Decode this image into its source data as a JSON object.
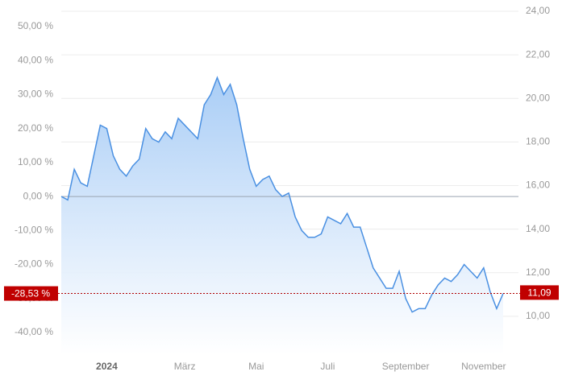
{
  "chart_data": {
    "type": "area",
    "categories": [
      null,
      null,
      null,
      null,
      null,
      null,
      null,
      "2024",
      null,
      null,
      null,
      null,
      null,
      null,
      null,
      null,
      null,
      null,
      null,
      "März",
      null,
      null,
      null,
      null,
      null,
      null,
      null,
      null,
      null,
      null,
      "Mai",
      null,
      null,
      null,
      null,
      null,
      null,
      null,
      null,
      null,
      null,
      "Juli",
      null,
      null,
      null,
      null,
      null,
      null,
      null,
      null,
      null,
      null,
      null,
      "September",
      null,
      null,
      null,
      null,
      null,
      null,
      null,
      null,
      null,
      null,
      null,
      "November",
      null,
      null,
      null
    ],
    "series": [
      {
        "color": "#4a90e2",
        "values": [
          0,
          -1,
          8,
          4,
          3,
          12,
          21,
          20,
          12,
          8,
          6,
          9,
          11,
          20,
          17,
          16,
          19,
          17,
          23,
          21,
          19,
          17,
          27,
          30,
          35,
          30,
          33,
          27,
          17,
          8,
          3,
          5,
          6,
          2,
          0,
          1,
          -6,
          -10,
          -12,
          -12,
          -11,
          -6,
          -7,
          -8,
          -5,
          -9,
          -9,
          -15,
          -21,
          -24,
          -27,
          -27,
          -22,
          -30,
          -34,
          -33,
          -33,
          -29,
          -26,
          -24,
          -25,
          -23,
          -20,
          -22,
          -24,
          -21,
          -28,
          -33,
          -28.53
        ]
      }
    ],
    "ylim": [
      -46.4,
      54.5
    ],
    "yticks": [
      {
        "value": 50,
        "label": "50,00 %"
      },
      {
        "value": 40,
        "label": "40,00 %"
      },
      {
        "value": 30,
        "label": "30,00 %"
      },
      {
        "value": 20,
        "label": "20,00 %"
      },
      {
        "value": 10,
        "label": "10,00 %"
      },
      {
        "value": 0,
        "label": "0,00 %"
      },
      {
        "value": -10,
        "label": "-10,00 %"
      },
      {
        "value": -20,
        "label": "-20,00 %"
      },
      {
        "value": -30,
        "label": "-30,00 %"
      },
      {
        "value": -40,
        "label": "-40,00 %"
      }
    ],
    "y2lim": [
      8.26,
      24
    ],
    "y2ticks": [
      {
        "value": 24,
        "label": "24,00"
      },
      {
        "value": 22,
        "label": "22,00"
      },
      {
        "value": 20,
        "label": "20,00"
      },
      {
        "value": 18,
        "label": "18,00"
      },
      {
        "value": 16,
        "label": "16,00"
      },
      {
        "value": 14,
        "label": "14,00"
      },
      {
        "value": 12,
        "label": "12,00"
      },
      {
        "value": 10,
        "label": "10,00"
      }
    ],
    "grid": true,
    "last_value": {
      "left": {
        "value": -28.53,
        "label": "-28,53 %"
      },
      "right": {
        "value": 11.09,
        "label": "11,09"
      }
    }
  }
}
